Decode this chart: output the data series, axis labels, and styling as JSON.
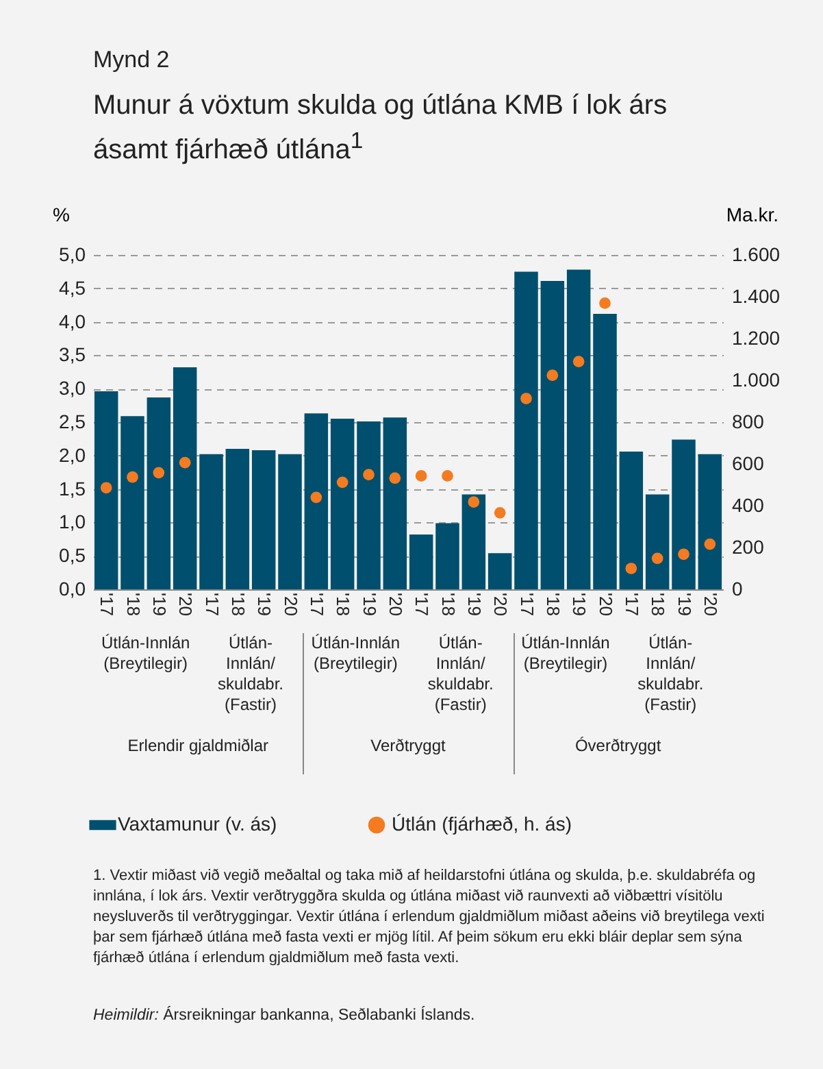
{
  "chart_data": {
    "type": "bar",
    "subtitle": "Mynd 2",
    "title": "Munur á vöxtum skulda og útlána KMB í lok árs ásamt fjárhæð útlána$^{1}$",
    "ylabel": "%",
    "y2label": "Ma.kr.",
    "categories": [
      "'17",
      "'18",
      "'19",
      "'20",
      "'17",
      "'18",
      "'19",
      "'20",
      "'17",
      "'18",
      "'19",
      "'20",
      "'17",
      "'18",
      "'19",
      "'20",
      "'17",
      "'18",
      "'19",
      "'20",
      "'17",
      "'18",
      "'19",
      "'20"
    ],
    "series": [
      {
        "name": "Vaxtamunur (v. ás)",
        "color": "#004f6e",
        "values": [
          2.96,
          2.59,
          2.87,
          3.32,
          2.02,
          2.1,
          2.08,
          2.02,
          2.63,
          2.55,
          2.51,
          2.57,
          0.82,
          0.99,
          1.42,
          0.54,
          4.75,
          4.61,
          4.78,
          4.12,
          2.06,
          1.42,
          2.24,
          2.02
        ]
      },
      {
        "name": "Útlán (fjárhæð, h. ás)",
        "type": "scatter",
        "axis": "y2",
        "color": "#f47b20",
        "values": [
          486,
          537,
          558,
          606,
          null,
          null,
          null,
          null,
          440,
          512,
          549,
          532,
          543,
          543,
          418,
          366,
          913,
          1024,
          1090,
          1369,
          100,
          148,
          168,
          216
        ]
      }
    ],
    "ylim": [
      0,
      5
    ],
    "yticks": [
      {
        "value": 0,
        "label": "0,0"
      },
      {
        "value": 0.5,
        "label": "0,5"
      },
      {
        "value": 1,
        "label": "1,0"
      },
      {
        "value": 1.5,
        "label": "1,5"
      },
      {
        "value": 2,
        "label": "2,0"
      },
      {
        "value": 2.5,
        "label": "2,5"
      },
      {
        "value": 3,
        "label": "3,0"
      },
      {
        "value": 3.5,
        "label": "3,5"
      },
      {
        "value": 4,
        "label": "4,0"
      },
      {
        "value": 4.5,
        "label": "4,5"
      },
      {
        "value": 5,
        "label": "5,0"
      }
    ],
    "y2lim": [
      0,
      1600
    ],
    "y2ticks": [
      0,
      200,
      400,
      600,
      800,
      {
        "value": 1000,
        "label": "1.000"
      },
      {
        "value": 1200,
        "label": "1.200"
      },
      {
        "value": 1400,
        "label": "1.400"
      },
      {
        "value": 1600,
        "label": "1.600"
      }
    ],
    "grid": "y",
    "legend": "bottom",
    "marker": "circle",
    "annotations": [
      "Útlán-Innlán\n(Breytilegir)",
      "Útlán-\nInnlán/\nskuldabr.\n(Fastir)",
      "Útlán-Innlán\n(Breytilegir)",
      "Útlán-\nInnlán/\nskuldabr.\n(Fastir)",
      "Útlán-Innlán\n(Breytilegir)",
      "Útlán-\nInnlán/\nskuldabr.\n(Fastir)",
      "Erlendir gjaldmiðlar",
      "Verðtryggt",
      "Óverðtryggt",
      "1. Vextir miðast við vegið meðaltal og taka mið af heildarstofni útlána og skulda, þ.e. skuldabréfa og innlána, í lok árs.  Vextir verðtryggðra skulda og útlána miðast við raunvexti að viðbættri vísitölu neysluverðs til verðtryggingar. Vextir útlána í erlendum gjaldmiðlum miðast aðeins við breytilega vexti þar sem fjárhæð útlána með fasta vexti er mjög lítil. Af þeim sökum eru ekki bláir deplar sem sýna fjárhæð útlána í erlendum gjaldmiðlum með fasta vexti.",
      "Heimildir: Ársreikningar bankanna, Seðlabanki Íslands."
    ]
  }
}
